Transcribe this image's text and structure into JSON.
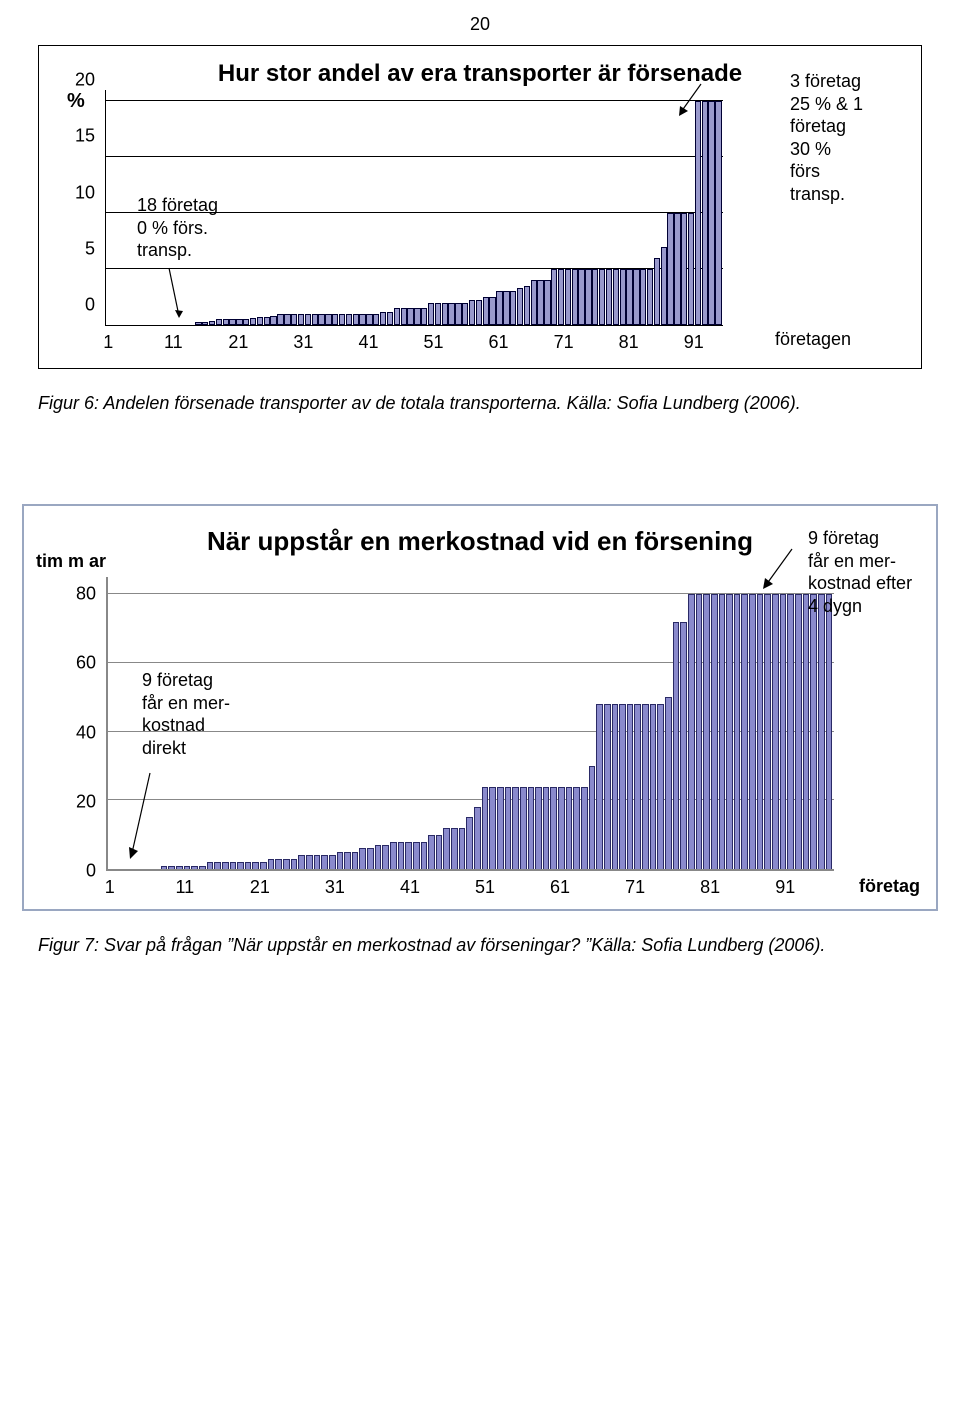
{
  "page_number": "20",
  "chart1": {
    "title": "Hur stor andel av era transporter är försenade",
    "y_unit": "%",
    "y_ticks": [
      0,
      5,
      10,
      15,
      20
    ],
    "ylim": [
      0,
      21
    ],
    "x_ticks": [
      1,
      11,
      21,
      31,
      41,
      51,
      61,
      71,
      81,
      91
    ],
    "x_count": 95,
    "legend_right": "företagen",
    "bar_color": "#9999cc",
    "bar_border": "#000033",
    "grid_color": "#000000",
    "background": "#ffffff",
    "annot_left_lines": [
      "18 företag",
      "0 % förs.",
      "transp."
    ],
    "annot_right_lines": [
      "3 företag",
      "25 % & 1",
      "företag",
      "30 %",
      "förs",
      "transp."
    ],
    "values": [
      0,
      0,
      0,
      0,
      0,
      0,
      0,
      0,
      0,
      0,
      0,
      0,
      0,
      0,
      0,
      0,
      0,
      0,
      0.3,
      0.3,
      0.4,
      0.5,
      0.5,
      0.5,
      0.5,
      0.5,
      0.6,
      0.7,
      0.7,
      0.8,
      1,
      1,
      1,
      1,
      1,
      1,
      1,
      1,
      1,
      1,
      1,
      1,
      1,
      1,
      1,
      1.2,
      1.2,
      1.5,
      1.5,
      1.5,
      1.5,
      1.5,
      2,
      2,
      2,
      2,
      2,
      2,
      2.2,
      2.2,
      2.5,
      2.5,
      3,
      3,
      3,
      3.3,
      3.5,
      4,
      4,
      4,
      5,
      5,
      5,
      5,
      5,
      5,
      5,
      5,
      5,
      5,
      5,
      5,
      5,
      5,
      5,
      6,
      7,
      10,
      10,
      10,
      10,
      20,
      20,
      20,
      20
    ]
  },
  "caption1": "Figur 6: Andelen försenade transporter av de totala transporterna. Källa: Sofia Lundberg (2006).",
  "chart2": {
    "title": "När uppstår en merkostnad vid en försening",
    "y_unit": "tim m ar",
    "y_ticks": [
      0,
      20,
      40,
      60,
      80
    ],
    "ylim": [
      0,
      85
    ],
    "x_ticks": [
      1,
      11,
      21,
      31,
      41,
      51,
      61,
      71,
      81,
      91
    ],
    "x_count": 97,
    "legend_right": "företag",
    "bar_color": "#8a8acc",
    "bar_border": "#2a2a66",
    "axis_color": "#888888",
    "annot_left_lines": [
      "9 företag",
      "får en mer-",
      "kostnad",
      "direkt"
    ],
    "annot_right_lines": [
      "9 företag",
      "får en mer-",
      "kostnad efter",
      "4 dygn"
    ],
    "values": [
      0,
      0,
      0,
      0,
      0,
      0,
      0,
      0,
      0,
      1,
      1,
      1,
      1,
      1,
      1,
      2,
      2,
      2,
      2,
      2,
      2,
      2,
      2,
      3,
      3,
      3,
      3,
      4,
      4,
      4,
      4,
      4,
      5,
      5,
      5,
      6,
      6,
      7,
      7,
      8,
      8,
      8,
      8,
      8,
      10,
      10,
      12,
      12,
      12,
      15,
      18,
      24,
      24,
      24,
      24,
      24,
      24,
      24,
      24,
      24,
      24,
      24,
      24,
      24,
      24,
      30,
      48,
      48,
      48,
      48,
      48,
      48,
      48,
      48,
      48,
      50,
      72,
      72,
      80,
      80,
      80,
      80,
      80,
      80,
      80,
      80,
      80,
      80,
      80,
      80,
      80,
      80,
      80,
      80,
      80,
      80,
      80
    ]
  },
  "caption2": "Figur 7: Svar på frågan ”När uppstår en merkostnad av förseningar? ”Källa: Sofia Lundberg (2006)."
}
